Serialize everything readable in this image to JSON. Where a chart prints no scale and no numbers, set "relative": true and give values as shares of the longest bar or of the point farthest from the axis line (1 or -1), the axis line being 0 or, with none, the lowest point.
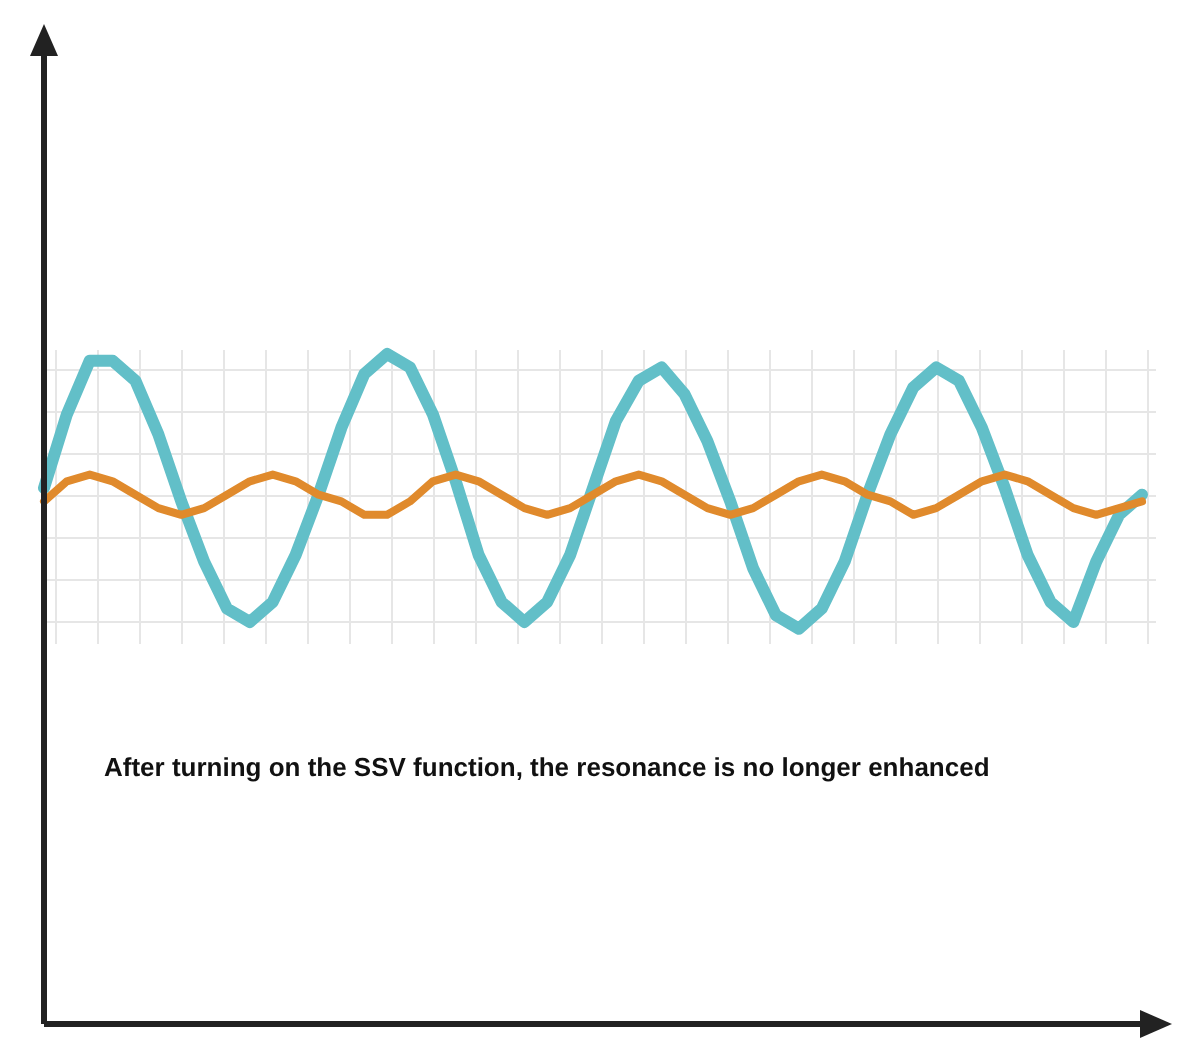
{
  "chart_data": {
    "type": "line",
    "relative": true,
    "marker": "none",
    "line_style": "solid",
    "annotations": [
      "After turning on the SSV function, the resonance is no longer enhanced"
    ],
    "categories": [
      null,
      null,
      null,
      null,
      null,
      null,
      null,
      null,
      null,
      null,
      null,
      null,
      null,
      null,
      null,
      null,
      null,
      null,
      null,
      null,
      null,
      null,
      null,
      null,
      null,
      null,
      null,
      null,
      null,
      null,
      null,
      null,
      null,
      null,
      null,
      null,
      null,
      null,
      null,
      null,
      null,
      null,
      null,
      null,
      null,
      null,
      null,
      null,
      null
    ],
    "series": [
      {
        "color": "#62bfc8",
        "values": [
          0.8,
          0.91,
          0.99,
          0.99,
          0.96,
          0.88,
          0.78,
          0.69,
          0.62,
          0.6,
          0.63,
          0.7,
          0.79,
          0.89,
          0.97,
          1,
          0.98,
          0.91,
          0.81,
          0.7,
          0.63,
          0.6,
          0.63,
          0.7,
          0.8,
          0.9,
          0.96,
          0.98,
          0.94,
          0.87,
          0.78,
          0.68,
          0.61,
          0.59,
          0.62,
          0.69,
          0.79,
          0.88,
          0.95,
          0.98,
          0.96,
          0.89,
          0.8,
          0.7,
          0.63,
          0.6,
          0.69,
          0.76,
          0.79
        ]
      },
      {
        "color": "#e08a2c",
        "values": [
          0.78,
          0.81,
          0.82,
          0.81,
          0.79,
          0.77,
          0.76,
          0.77,
          0.79,
          0.81,
          0.82,
          0.81,
          0.79,
          0.78,
          0.76,
          0.76,
          0.78,
          0.81,
          0.82,
          0.81,
          0.79,
          0.77,
          0.76,
          0.77,
          0.79,
          0.81,
          0.82,
          0.81,
          0.79,
          0.77,
          0.76,
          0.77,
          0.79,
          0.81,
          0.82,
          0.81,
          0.79,
          0.78,
          0.76,
          0.77,
          0.79,
          0.81,
          0.82,
          0.81,
          0.79,
          0.77,
          0.76,
          0.77,
          0.78
        ]
      }
    ]
  }
}
